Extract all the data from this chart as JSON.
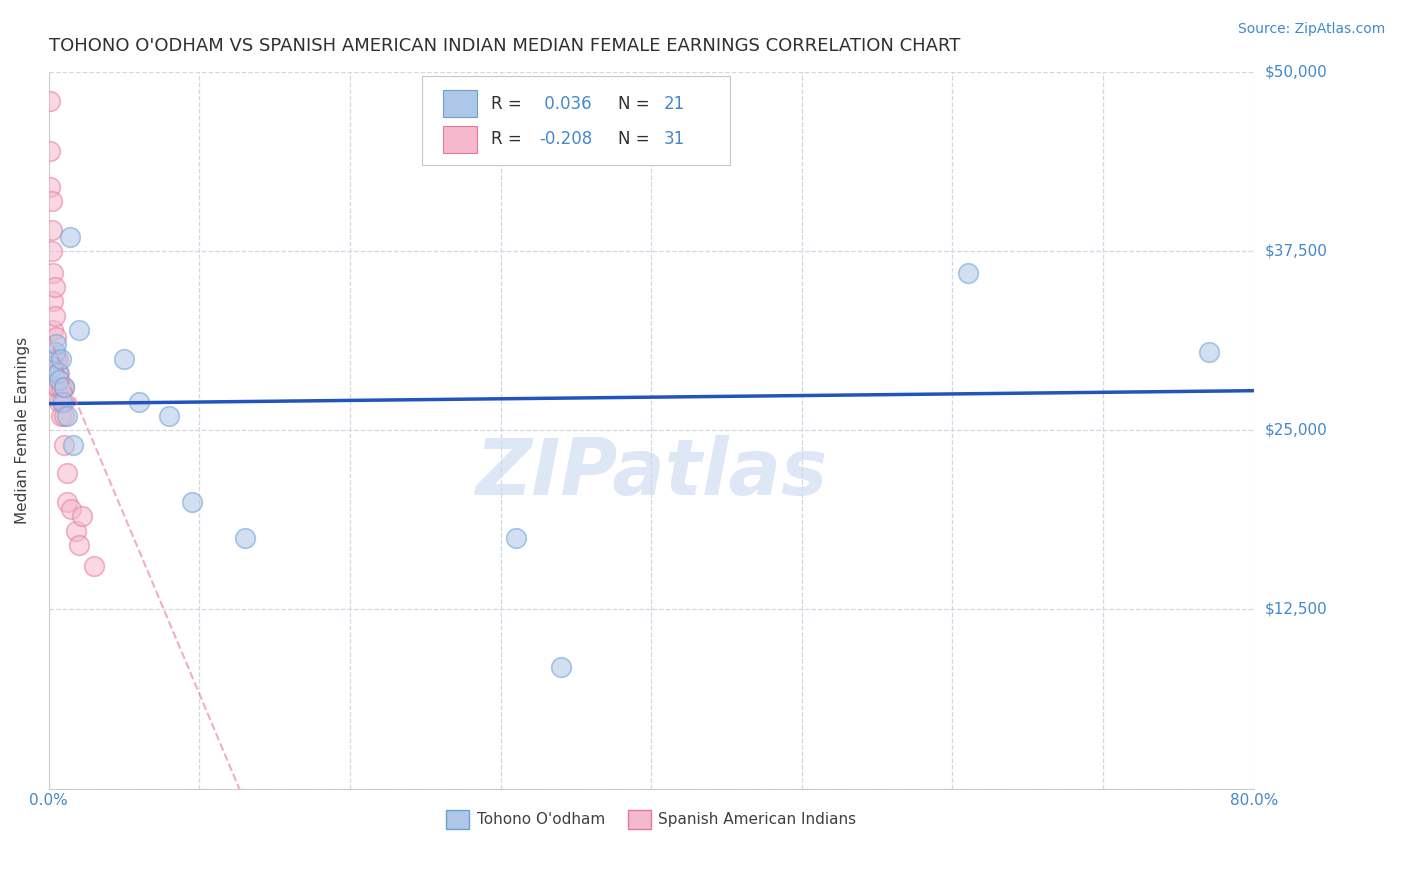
{
  "title": "TOHONO O'ODHAM VS SPANISH AMERICAN INDIAN MEDIAN FEMALE EARNINGS CORRELATION CHART",
  "source": "Source: ZipAtlas.com",
  "ylabel": "Median Female Earnings",
  "xlim": [
    0,
    0.8
  ],
  "ylim": [
    0,
    50000
  ],
  "yticks": [
    0,
    12500,
    25000,
    37500,
    50000
  ],
  "ytick_labels": [
    "",
    "$12,500",
    "$25,000",
    "$37,500",
    "$50,000"
  ],
  "xticks": [
    0.0,
    0.1,
    0.2,
    0.3,
    0.4,
    0.5,
    0.6,
    0.7,
    0.8
  ],
  "xtick_labels": [
    "0.0%",
    "",
    "",
    "",
    "",
    "",
    "",
    "",
    "80.0%"
  ],
  "blue_R": 0.036,
  "blue_N": 21,
  "pink_R": -0.208,
  "pink_N": 31,
  "blue_color": "#aec6e8",
  "blue_edge_color": "#6aa0d4",
  "pink_color": "#f5b8cc",
  "pink_edge_color": "#e8789a",
  "line_blue_color": "#2255bb",
  "line_pink_color": "#e87898",
  "axis_color": "#4488cc",
  "grid_color": "#d0d8e8",
  "title_color": "#303030",
  "source_color": "#4488cc",
  "watermark": "ZIPatlas",
  "watermark_color": "#c8d8f0",
  "blue_x": [
    0.003,
    0.004,
    0.005,
    0.006,
    0.007,
    0.008,
    0.009,
    0.01,
    0.012,
    0.014,
    0.016,
    0.02,
    0.05,
    0.06,
    0.08,
    0.095,
    0.13,
    0.31,
    0.34,
    0.61,
    0.77
  ],
  "blue_y": [
    29500,
    30500,
    31000,
    29000,
    28500,
    30000,
    27000,
    28000,
    26000,
    38500,
    24000,
    32000,
    30000,
    27000,
    26000,
    20000,
    17500,
    17500,
    8500,
    36000,
    30500
  ],
  "pink_x": [
    0.001,
    0.001,
    0.001,
    0.002,
    0.002,
    0.002,
    0.003,
    0.003,
    0.003,
    0.004,
    0.004,
    0.005,
    0.005,
    0.005,
    0.006,
    0.006,
    0.007,
    0.007,
    0.008,
    0.008,
    0.01,
    0.01,
    0.01,
    0.01,
    0.012,
    0.012,
    0.015,
    0.018,
    0.02,
    0.022,
    0.03
  ],
  "pink_y": [
    48000,
    44500,
    42000,
    41000,
    39000,
    37500,
    36000,
    34000,
    32000,
    35000,
    33000,
    31500,
    30000,
    28000,
    30000,
    28000,
    29000,
    27000,
    28000,
    26000,
    28000,
    27000,
    26000,
    24000,
    22000,
    20000,
    19500,
    18000,
    17000,
    19000,
    15500
  ],
  "marker_size": 200,
  "alpha": 0.55,
  "legend_R_color": "#4488cc",
  "legend_text_color": "#303030"
}
